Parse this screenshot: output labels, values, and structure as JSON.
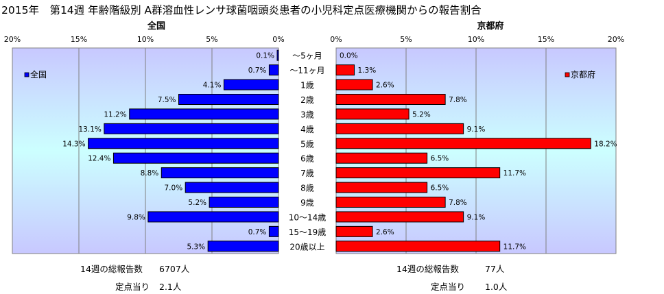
{
  "title": "2015年　第14週 年齢階級別 A群溶血性レンサ球菌咽頭炎患者の小児科定点医療機関からの報告割合",
  "chart_data": [
    {
      "type": "bar",
      "orientation": "horizontal",
      "direction": "right-to-left",
      "title": "全国",
      "legend": "全国",
      "legend_position": "top-left",
      "color": "#0000FF",
      "xlim": [
        0,
        20
      ],
      "xticks": [
        "0%",
        "5%",
        "10%",
        "15%",
        "20%"
      ],
      "categories": [
        "～5ヶ月",
        "～11ヶ月",
        "1歳",
        "2歳",
        "3歳",
        "4歳",
        "5歳",
        "6歳",
        "7歳",
        "8歳",
        "9歳",
        "10～14歳",
        "15～19歳",
        "20歳以上"
      ],
      "values": [
        0.1,
        0.7,
        4.1,
        7.5,
        11.2,
        13.1,
        14.3,
        12.4,
        8.8,
        7.0,
        5.2,
        9.8,
        0.7,
        5.3
      ],
      "labels": [
        "0.1%",
        "0.7%",
        "4.1%",
        "7.5%",
        "11.2%",
        "13.1%",
        "14.3%",
        "12.4%",
        "8.8%",
        "7.0%",
        "5.2%",
        "9.8%",
        "0.7%",
        "5.3%"
      ]
    },
    {
      "type": "bar",
      "orientation": "horizontal",
      "direction": "left-to-right",
      "title": "京都府",
      "legend": "京都府",
      "legend_position": "top-right",
      "color": "#FF0000",
      "xlim": [
        0,
        20
      ],
      "xticks": [
        "0%",
        "5%",
        "10%",
        "15%",
        "20%"
      ],
      "categories": [
        "～5ヶ月",
        "～11ヶ月",
        "1歳",
        "2歳",
        "3歳",
        "4歳",
        "5歳",
        "6歳",
        "7歳",
        "8歳",
        "9歳",
        "10～14歳",
        "15～19歳",
        "20歳以上"
      ],
      "values": [
        0.0,
        1.3,
        2.6,
        7.8,
        5.2,
        9.1,
        18.2,
        6.5,
        11.7,
        6.5,
        7.8,
        9.1,
        2.6,
        11.7
      ],
      "labels": [
        "0.0%",
        "1.3%",
        "2.6%",
        "7.8%",
        "5.2%",
        "9.1%",
        "18.2%",
        "6.5%",
        "11.7%",
        "6.5%",
        "7.8%",
        "9.1%",
        "2.6%",
        "11.7%"
      ]
    }
  ],
  "footer": {
    "national_total_label": "14週の総報告数",
    "national_total_value": "6707人",
    "national_per_label": "定点当り",
    "national_per_value": "2.1人",
    "kyoto_total_label": "14週の総報告数",
    "kyoto_total_value": "77人",
    "kyoto_per_label": "定点当り",
    "kyoto_per_value": "1.0人"
  },
  "colors": {
    "national_bar": "#0000FF",
    "kyoto_bar": "#FF0000",
    "plot_bg_edge": "#C8C8FF",
    "plot_bg_center": "#CCFFFF"
  }
}
